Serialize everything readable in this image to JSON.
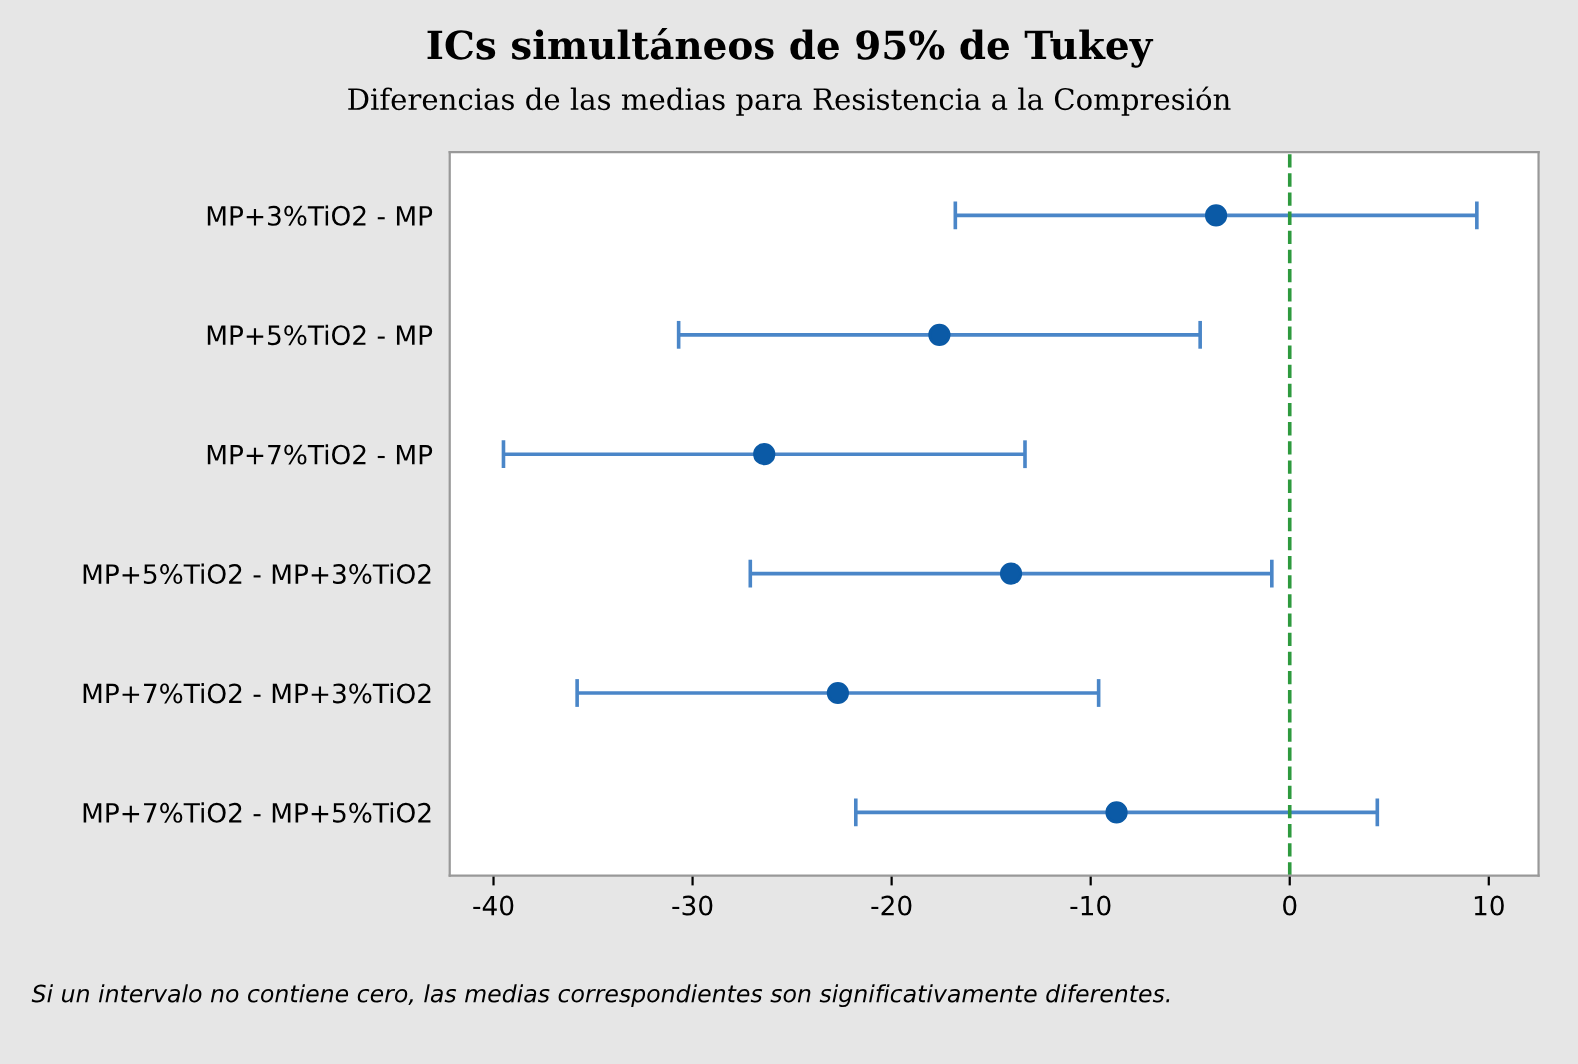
{
  "chart_data": {
    "type": "scatter",
    "orientation": "horizontal",
    "title": "ICs simultáneos de 95% de Tukey",
    "subtitle": "Diferencias de las medias para Resistencia a la Compresión",
    "categories": [
      "MP+3%TiO2 - MP",
      "MP+5%TiO2 - MP",
      "MP+7%TiO2 - MP",
      "MP+5%TiO2 - MP+3%TiO2",
      "MP+7%TiO2 - MP+3%TiO2",
      "MP+7%TiO2 - MP+5%TiO2"
    ],
    "values": [
      -3.7,
      -17.6,
      -26.4,
      -14.0,
      -22.7,
      -8.7
    ],
    "errors": [
      13.1,
      13.1,
      13.1,
      13.1,
      13.1,
      13.1
    ],
    "color": "#0b5aa6",
    "xlim": [
      -42.2,
      12.5
    ],
    "xticks": [
      -40,
      -30,
      -20,
      -10,
      0,
      10
    ],
    "ref_lines": [
      {
        "axis": "x",
        "value": 0,
        "label": null,
        "color": "#2e9a3e",
        "line_style": "dashed"
      }
    ],
    "marker": "circle",
    "grid": false,
    "legend": false,
    "annotations": [
      "Si un intervalo no contiene cero, las medias correspondientes son significativamente diferentes."
    ]
  }
}
